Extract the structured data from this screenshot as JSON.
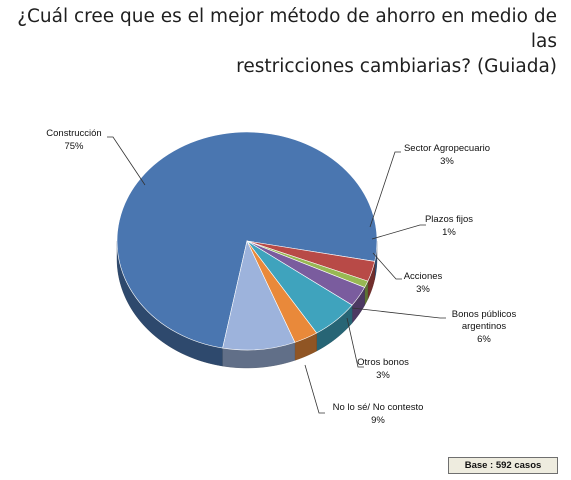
{
  "title_lines": [
    "¿Cuál cree que es el mejor método de ahorro en medio de las",
    "restricciones cambiarias? (Guiada)"
  ],
  "base_label": "Base : 592 casos",
  "chart_data": {
    "type": "pie",
    "title": "¿Cuál cree que es el mejor método de ahorro en medio de las restricciones cambiarias? (Guiada)",
    "slices": [
      {
        "label": "Construcción",
        "value": 75,
        "value_label": "75%",
        "color": "#4a76b0"
      },
      {
        "label": "Sector Agropecuario",
        "value": 3,
        "value_label": "3%",
        "color": "#b84a47"
      },
      {
        "label": "Plazos fijos",
        "value": 1,
        "value_label": "1%",
        "color": "#98b853"
      },
      {
        "label": "Acciones",
        "value": 3,
        "value_label": "3%",
        "color": "#7a5c9e"
      },
      {
        "label": "Bonos públicos argentinos",
        "value": 6,
        "value_label": "6%",
        "color": "#3fa3bd"
      },
      {
        "label": "Otros bonos",
        "value": 3,
        "value_label": "3%",
        "color": "#e9893a"
      },
      {
        "label": "No lo sé/ No contesto",
        "value": 9,
        "value_label": "9%",
        "color": "#9db3dc"
      }
    ],
    "legend": "none",
    "style": "3d-tilted"
  }
}
